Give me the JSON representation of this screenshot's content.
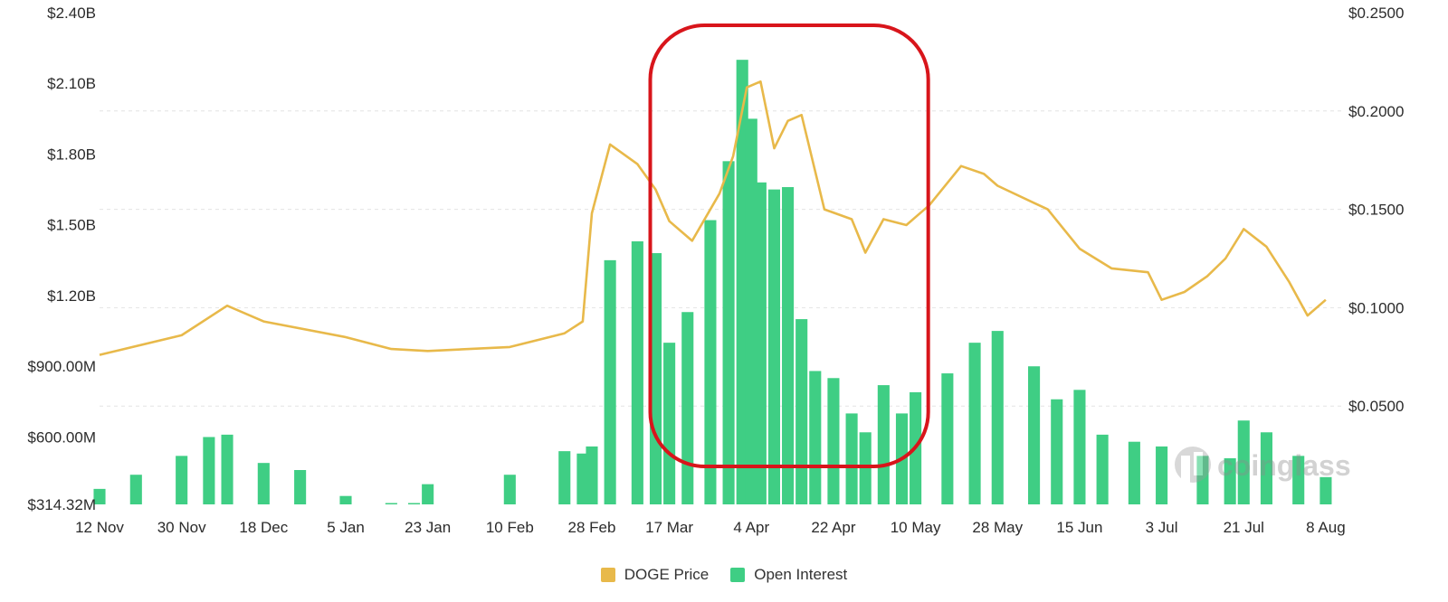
{
  "chart_data": {
    "type": "bar+line",
    "title": "",
    "x_ticks": [
      "12 Nov",
      "30 Nov",
      "18 Dec",
      "5 Jan",
      "23 Jan",
      "10 Feb",
      "28 Feb",
      "17 Mar",
      "4 Apr",
      "22 Apr",
      "10 May",
      "28 May",
      "15 Jun",
      "3 Jul",
      "21 Jul",
      "8 Aug"
    ],
    "y_left_ticks": [
      "$2.40B",
      "$2.10B",
      "$1.80B",
      "$1.50B",
      "$1.20B",
      "$900.00M",
      "$600.00M",
      "$314.32M"
    ],
    "y_left_range": [
      314.32,
      2400
    ],
    "y_left_unit": "millions USD",
    "y_right_ticks": [
      "$0.2500",
      "$0.2000",
      "$0.1500",
      "$0.1000",
      "$0.0500"
    ],
    "y_right_range": [
      0,
      0.25
    ],
    "grid": true,
    "legend_position": "bottom",
    "series": [
      {
        "name": "DOGE Price",
        "axis": "right",
        "color": "#e8b94a",
        "style": "line",
        "x": [
          "12 Nov",
          "30 Nov",
          "10 Dec",
          "18 Dec",
          "5 Jan",
          "15 Jan",
          "23 Jan",
          "10 Feb",
          "22 Feb",
          "26 Feb",
          "28 Feb",
          "4 Mar",
          "10 Mar",
          "14 Mar",
          "17 Mar",
          "22 Mar",
          "28 Mar",
          "31 Mar",
          "3 Apr",
          "6 Apr",
          "9 Apr",
          "12 Apr",
          "15 Apr",
          "20 Apr",
          "26 Apr",
          "29 Apr",
          "3 May",
          "8 May",
          "13 May",
          "20 May",
          "25 May",
          "28 May",
          "8 Jun",
          "15 Jun",
          "22 Jun",
          "30 Jun",
          "3 Jul",
          "8 Jul",
          "13 Jul",
          "17 Jul",
          "21 Jul",
          "26 Jul",
          "31 Jul",
          "4 Aug",
          "8 Aug"
        ],
        "values": [
          0.076,
          0.086,
          0.101,
          0.093,
          0.085,
          0.079,
          0.078,
          0.08,
          0.087,
          0.093,
          0.148,
          0.183,
          0.173,
          0.16,
          0.144,
          0.134,
          0.158,
          0.177,
          0.212,
          0.215,
          0.181,
          0.195,
          0.198,
          0.15,
          0.145,
          0.128,
          0.145,
          0.142,
          0.152,
          0.172,
          0.168,
          0.162,
          0.15,
          0.13,
          0.12,
          0.118,
          0.104,
          0.108,
          0.116,
          0.125,
          0.14,
          0.131,
          0.113,
          0.096,
          0.104
        ]
      },
      {
        "name": "Open Interest",
        "axis": "left",
        "unit": "millions USD",
        "color": "#3fce84",
        "style": "bar",
        "x": [
          "12 Nov",
          "20 Nov",
          "30 Nov",
          "6 Dec",
          "10 Dec",
          "18 Dec",
          "26 Dec",
          "5 Jan",
          "15 Jan",
          "20 Jan",
          "23 Jan",
          "10 Feb",
          "22 Feb",
          "26 Feb",
          "28 Feb",
          "4 Mar",
          "10 Mar",
          "14 Mar",
          "17 Mar",
          "21 Mar",
          "26 Mar",
          "30 Mar",
          "2 Apr",
          "4 Apr",
          "6 Apr",
          "9 Apr",
          "12 Apr",
          "15 Apr",
          "18 Apr",
          "22 Apr",
          "26 Apr",
          "29 Apr",
          "3 May",
          "7 May",
          "10 May",
          "17 May",
          "23 May",
          "28 May",
          "5 Jun",
          "10 Jun",
          "15 Jun",
          "20 Jun",
          "27 Jun",
          "3 Jul",
          "12 Jul",
          "18 Jul",
          "21 Jul",
          "26 Jul",
          "2 Aug",
          "8 Aug"
        ],
        "values": [
          380,
          440,
          520,
          600,
          610,
          490,
          460,
          350,
          320,
          320,
          400,
          440,
          540,
          530,
          560,
          1350,
          1430,
          1380,
          1000,
          1130,
          1520,
          1770,
          2200,
          1950,
          1680,
          1650,
          1660,
          1100,
          880,
          850,
          700,
          620,
          820,
          700,
          790,
          870,
          1000,
          1050,
          900,
          760,
          800,
          610,
          580,
          560,
          520,
          510,
          670,
          620,
          520,
          430
        ]
      }
    ],
    "annotations": [
      {
        "type": "rounded-rectangle",
        "color": "#d8151b",
        "x_from": "14 Mar",
        "x_to": "12 May"
      }
    ],
    "watermark": "coinglass"
  }
}
